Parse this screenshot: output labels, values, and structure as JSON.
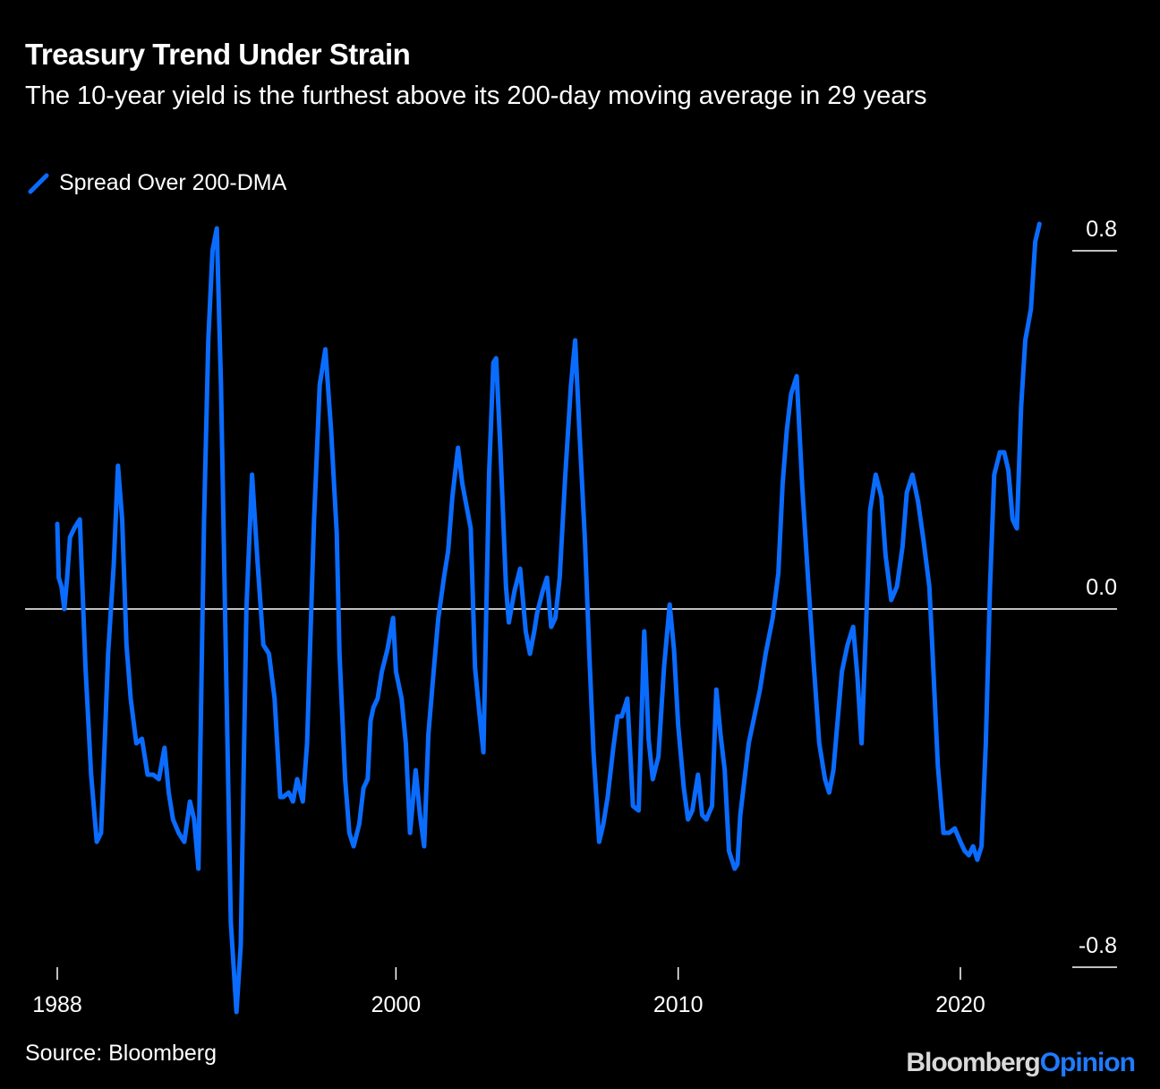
{
  "header": {
    "title": "Treasury Trend Under Strain",
    "subtitle": "The 10-year yield is the furthest above its 200-day moving average in 29 years"
  },
  "footer": {
    "source": "Source: Bloomberg",
    "brand_primary": "Bloomberg",
    "brand_secondary": "Opinion"
  },
  "colors": {
    "background": "#000000",
    "series": "#0a6cff",
    "zero_line": "#ffffff",
    "brand_primary": "#d9d9d9",
    "brand_secondary": "#1f7bff"
  },
  "chart_data": {
    "type": "line",
    "title": "Treasury Trend Under Strain",
    "subtitle": "The 10-year yield is the furthest above its 200-day moving average in 29 years",
    "xlabel": "",
    "ylabel": "",
    "xlim": [
      1987.5,
      2024.3
    ],
    "ylim": [
      -0.8,
      0.9
    ],
    "y_ticks": [
      0.8,
      0.0,
      -0.8
    ],
    "y_tick_labels": [
      "0.8",
      "0.0",
      "-0.8"
    ],
    "x_ticks": [
      1988,
      2000,
      2010,
      2020
    ],
    "x_tick_labels": [
      "1988",
      "2000",
      "2010",
      "2020"
    ],
    "legend": {
      "position": "top-left"
    },
    "grid": false,
    "series": [
      {
        "name": "Spread Over 200-DMA",
        "x": [
          1988.0,
          1988.05,
          1988.15,
          1988.25,
          1988.35,
          1988.45,
          1988.6,
          1988.8,
          1989.0,
          1989.2,
          1989.4,
          1989.55,
          1989.65,
          1989.8,
          1990.0,
          1990.15,
          1990.3,
          1990.45,
          1990.6,
          1990.8,
          1991.0,
          1991.2,
          1991.4,
          1991.6,
          1991.8,
          1991.95,
          1992.1,
          1992.3,
          1992.5,
          1992.7,
          1992.85,
          1993.0,
          1993.2,
          1993.35,
          1993.5,
          1993.65,
          1993.8,
          1994.0,
          1994.15,
          1994.35,
          1994.5,
          1994.7,
          1994.9,
          1995.1,
          1995.3,
          1995.5,
          1995.7,
          1995.9,
          1996.0,
          1996.2,
          1996.35,
          1996.5,
          1996.7,
          1996.85,
          1997.1,
          1997.3,
          1997.5,
          1997.7,
          1997.9,
          1998.0,
          1998.2,
          1998.35,
          1998.5,
          1998.7,
          1998.85,
          1999.0,
          1999.1,
          1999.2,
          1999.35,
          1999.5,
          1999.7,
          1999.9,
          2000.0,
          2000.2,
          2000.35,
          2000.5,
          2000.7,
          2000.85,
          2001.0,
          2001.15,
          2001.35,
          2001.5,
          2001.7,
          2001.85,
          2002.0,
          2002.2,
          2002.35,
          2002.5,
          2002.65,
          2002.8,
          2002.95,
          2003.1,
          2003.3,
          2003.45,
          2003.55,
          2003.7,
          2003.9,
          2004.0,
          2004.2,
          2004.4,
          2004.6,
          2004.75,
          2004.9,
          2005.0,
          2005.2,
          2005.35,
          2005.5,
          2005.65,
          2005.8,
          2006.0,
          2006.2,
          2006.35,
          2006.5,
          2006.7,
          2006.85,
          2007.0,
          2007.2,
          2007.35,
          2007.5,
          2007.7,
          2007.85,
          2008.0,
          2008.2,
          2008.4,
          2008.6,
          2008.8,
          2008.95,
          2009.1,
          2009.3,
          2009.5,
          2009.7,
          2009.85,
          2010.0,
          2010.2,
          2010.35,
          2010.5,
          2010.7,
          2010.85,
          2011.0,
          2011.2,
          2011.35,
          2011.5,
          2011.65,
          2011.8,
          2012.0,
          2012.1,
          2012.2,
          2012.35,
          2012.5,
          2012.7,
          2012.9,
          2013.1,
          2013.35,
          2013.55,
          2013.7,
          2013.85,
          2014.0,
          2014.2,
          2014.4,
          2014.6,
          2014.8,
          2015.0,
          2015.2,
          2015.35,
          2015.5,
          2015.65,
          2015.8,
          2016.0,
          2016.2,
          2016.35,
          2016.5,
          2016.65,
          2016.8,
          2017.0,
          2017.2,
          2017.35,
          2017.55,
          2017.75,
          2017.95,
          2018.1,
          2018.3,
          2018.5,
          2018.7,
          2018.9,
          2019.0,
          2019.2,
          2019.4,
          2019.6,
          2019.8,
          2020.0,
          2020.15,
          2020.3,
          2020.45,
          2020.6,
          2020.75,
          2020.9,
          2021.05,
          2021.2,
          2021.4,
          2021.55,
          2021.7,
          2021.85,
          2022.0,
          2022.15,
          2022.3,
          2022.5,
          2022.65,
          2022.8
        ],
        "y": [
          0.19,
          0.07,
          0.05,
          0.0,
          0.07,
          0.16,
          0.18,
          0.2,
          -0.13,
          -0.37,
          -0.52,
          -0.5,
          -0.35,
          -0.1,
          0.1,
          0.32,
          0.2,
          -0.08,
          -0.2,
          -0.3,
          -0.29,
          -0.37,
          -0.37,
          -0.38,
          -0.31,
          -0.41,
          -0.47,
          -0.5,
          -0.52,
          -0.43,
          -0.47,
          -0.58,
          0.2,
          0.6,
          0.8,
          0.85,
          0.5,
          -0.2,
          -0.7,
          -0.9,
          -0.75,
          0.0,
          0.3,
          0.1,
          -0.08,
          -0.1,
          -0.2,
          -0.42,
          -0.42,
          -0.41,
          -0.43,
          -0.38,
          -0.43,
          -0.3,
          0.2,
          0.5,
          0.58,
          0.4,
          0.17,
          -0.1,
          -0.38,
          -0.5,
          -0.53,
          -0.48,
          -0.4,
          -0.38,
          -0.25,
          -0.22,
          -0.2,
          -0.14,
          -0.09,
          -0.02,
          -0.14,
          -0.2,
          -0.3,
          -0.5,
          -0.36,
          -0.46,
          -0.53,
          -0.28,
          -0.13,
          -0.02,
          0.07,
          0.13,
          0.25,
          0.36,
          0.28,
          0.23,
          0.18,
          -0.13,
          -0.23,
          -0.32,
          0.3,
          0.55,
          0.56,
          0.36,
          0.05,
          -0.03,
          0.04,
          0.09,
          -0.05,
          -0.1,
          -0.05,
          -0.01,
          0.04,
          0.07,
          -0.04,
          -0.02,
          0.07,
          0.3,
          0.5,
          0.6,
          0.4,
          0.15,
          -0.1,
          -0.32,
          -0.52,
          -0.48,
          -0.42,
          -0.31,
          -0.24,
          -0.24,
          -0.2,
          -0.44,
          -0.45,
          -0.05,
          -0.29,
          -0.38,
          -0.33,
          -0.13,
          0.01,
          -0.09,
          -0.26,
          -0.4,
          -0.47,
          -0.45,
          -0.37,
          -0.46,
          -0.47,
          -0.44,
          -0.18,
          -0.28,
          -0.36,
          -0.54,
          -0.58,
          -0.57,
          -0.46,
          -0.38,
          -0.3,
          -0.24,
          -0.18,
          -0.1,
          -0.02,
          0.08,
          0.28,
          0.4,
          0.48,
          0.52,
          0.27,
          0.07,
          -0.12,
          -0.3,
          -0.38,
          -0.41,
          -0.36,
          -0.25,
          -0.14,
          -0.08,
          -0.04,
          -0.15,
          -0.3,
          -0.05,
          0.22,
          0.3,
          0.25,
          0.12,
          0.02,
          0.05,
          0.14,
          0.26,
          0.3,
          0.24,
          0.15,
          0.05,
          -0.08,
          -0.35,
          -0.5,
          -0.5,
          -0.49,
          -0.52,
          -0.54,
          -0.55,
          -0.53,
          -0.56,
          -0.53,
          -0.3,
          0.05,
          0.3,
          0.35,
          0.35,
          0.31,
          0.2,
          0.18,
          0.45,
          0.6,
          0.67,
          0.82,
          0.86
        ]
      }
    ]
  }
}
